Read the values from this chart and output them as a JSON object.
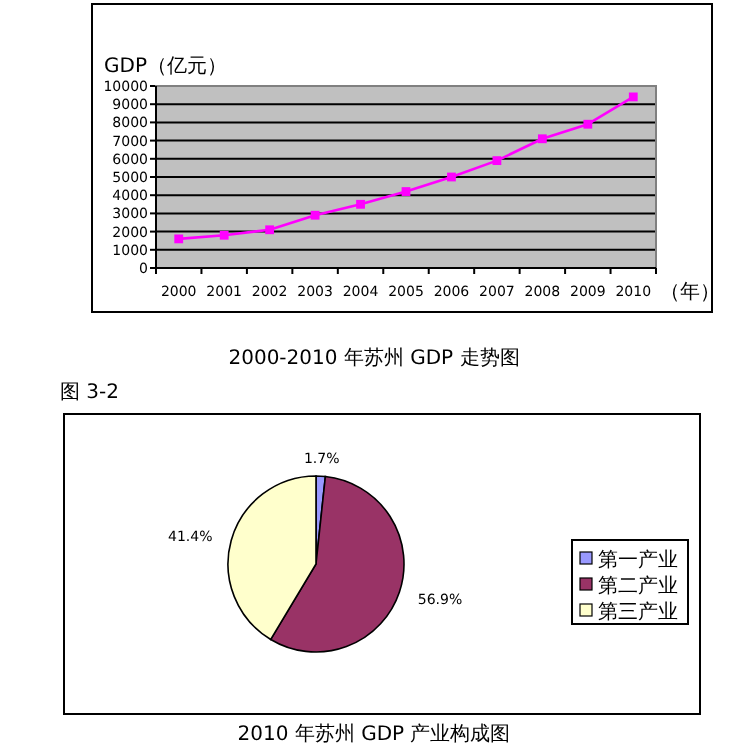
{
  "chart_data": [
    {
      "type": "line",
      "title": "2000-2010 年苏州 GDP 走势图",
      "ylabel": "GDP（亿元）",
      "xlabel": "（年）",
      "categories": [
        "2000",
        "2001",
        "2002",
        "2003",
        "2004",
        "2005",
        "2006",
        "2007",
        "2008",
        "2009",
        "2010"
      ],
      "series": [
        {
          "color": "#ff00ff",
          "values": [
            1600,
            1800,
            2100,
            2900,
            3500,
            4200,
            5000,
            5900,
            7100,
            7900,
            9400
          ]
        }
      ],
      "ylim": [
        0,
        10000
      ],
      "yticks": [
        0,
        1000,
        2000,
        3000,
        4000,
        5000,
        6000,
        7000,
        8000,
        9000,
        10000
      ],
      "grid": "y",
      "marker": "square",
      "line_style": "solid",
      "legend": false
    },
    {
      "type": "pie",
      "title": "2010 年苏州 GDP 产业构成图",
      "annotations": [
        "图 3-2"
      ],
      "categories": [
        "第一产业",
        "第二产业",
        "第三产业"
      ],
      "values": [
        1.7,
        56.9,
        41.4
      ],
      "colors": [
        "#9999ff",
        "#993366",
        "#ffffcc"
      ],
      "value_labels": [
        "1.7%",
        "56.9%",
        "41.4%"
      ],
      "legend": "right"
    }
  ]
}
